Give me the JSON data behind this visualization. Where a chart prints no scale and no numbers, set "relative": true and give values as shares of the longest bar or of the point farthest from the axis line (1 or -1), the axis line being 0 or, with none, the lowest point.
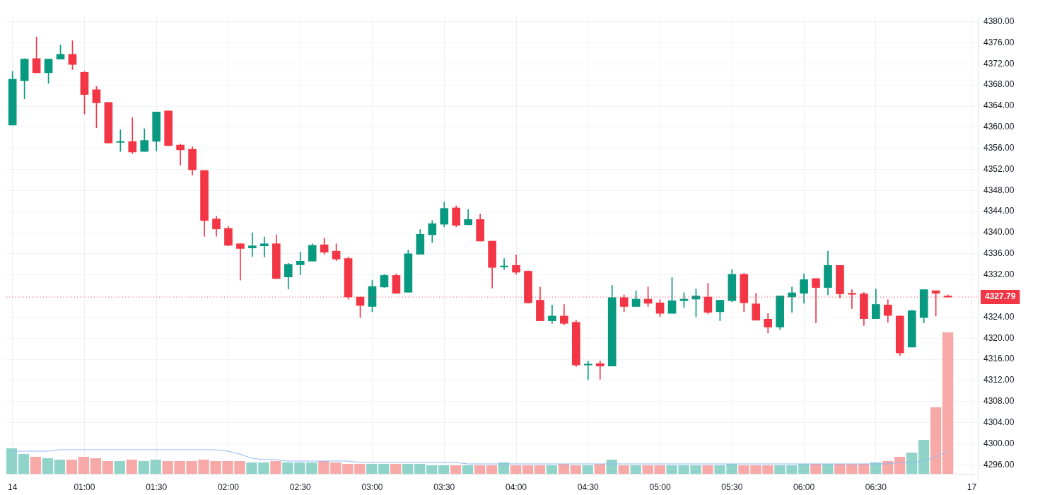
{
  "chart_data": [
    {
      "type": "candlestick",
      "categories": [
        "14",
        null,
        null,
        null,
        null,
        null,
        "01:00",
        null,
        null,
        null,
        null,
        null,
        "01:30",
        null,
        null,
        null,
        null,
        null,
        "02:00",
        null,
        null,
        null,
        null,
        null,
        "02:30",
        null,
        null,
        null,
        null,
        null,
        "03:00",
        null,
        null,
        null,
        null,
        null,
        "03:30",
        null,
        null,
        null,
        null,
        null,
        "04:00",
        null,
        null,
        null,
        null,
        null,
        "04:30",
        null,
        null,
        null,
        null,
        null,
        "05:00",
        null,
        null,
        null,
        null,
        null,
        "05:30",
        null,
        null,
        null,
        null,
        null,
        "06:00",
        null,
        null,
        null,
        null,
        null,
        "06:30",
        null,
        null,
        null,
        null,
        null,
        null,
        null,
        "17"
      ],
      "ohlc": [
        [
          4360.4,
          4370.6,
          4360.4,
          4369.1
        ],
        [
          4368.8,
          4373.0,
          4365.4,
          4372.9
        ],
        [
          4373.0,
          4377.1,
          4370.3,
          4370.3
        ],
        [
          4370.3,
          4372.9,
          4368.3,
          4372.9
        ],
        [
          4372.9,
          4375.6,
          4372.9,
          4373.8
        ],
        [
          4373.8,
          4376.4,
          4370.9,
          4371.9
        ],
        [
          4370.4,
          4370.6,
          4362.5,
          4366.2
        ],
        [
          4367.1,
          4367.7,
          4359.9,
          4364.6
        ],
        [
          4364.7,
          4364.7,
          4357.0,
          4357.0
        ],
        [
          4357.1,
          4359.5,
          4355.4,
          4357.3
        ],
        [
          4357.3,
          4361.8,
          4355.0,
          4355.3
        ],
        [
          4355.4,
          4359.7,
          4355.4,
          4357.5
        ],
        [
          4357.3,
          4362.9,
          4355.5,
          4362.9
        ],
        [
          4363.1,
          4363.1,
          4356.5,
          4356.5
        ],
        [
          4356.6,
          4356.8,
          4352.8,
          4355.7
        ],
        [
          4355.8,
          4356.3,
          4350.9,
          4351.9
        ],
        [
          4351.8,
          4351.8,
          4339.3,
          4342.3
        ],
        [
          4342.6,
          4343.1,
          4339.3,
          4340.7
        ],
        [
          4340.8,
          4341.2,
          4337.5,
          4337.6
        ],
        [
          4337.9,
          4337.9,
          4331.0,
          4337.0
        ],
        [
          4337.1,
          4340.0,
          4335.5,
          4337.5
        ],
        [
          4337.5,
          4339.2,
          4335.4,
          4337.9
        ],
        [
          4337.9,
          4339.6,
          4331.3,
          4331.3
        ],
        [
          4331.6,
          4334.2,
          4329.3,
          4334.0
        ],
        [
          4333.9,
          4336.3,
          4332.0,
          4334.6
        ],
        [
          4334.6,
          4337.9,
          4334.6,
          4337.6
        ],
        [
          4337.7,
          4339.0,
          4335.9,
          4336.3
        ],
        [
          4336.5,
          4337.9,
          4334.7,
          4335.0
        ],
        [
          4335.1,
          4335.4,
          4327.4,
          4327.8
        ],
        [
          4327.8,
          4327.8,
          4323.9,
          4326.2
        ],
        [
          4326.0,
          4331.0,
          4325.0,
          4329.8
        ],
        [
          4329.7,
          4332.1,
          4329.6,
          4331.9
        ],
        [
          4331.9,
          4332.2,
          4328.5,
          4328.5
        ],
        [
          4328.7,
          4336.7,
          4328.7,
          4336.0
        ],
        [
          4335.9,
          4340.6,
          4335.9,
          4339.7
        ],
        [
          4339.6,
          4342.3,
          4338.1,
          4341.7
        ],
        [
          4341.6,
          4345.8,
          4341.1,
          4344.6
        ],
        [
          4344.7,
          4345.1,
          4341.1,
          4341.4
        ],
        [
          4341.5,
          4344.4,
          4341.5,
          4342.5
        ],
        [
          4342.5,
          4343.5,
          4338.4,
          4338.4
        ],
        [
          4338.4,
          4338.4,
          4329.5,
          4333.4
        ],
        [
          4333.5,
          4335.1,
          4333.0,
          4333.7
        ],
        [
          4333.8,
          4335.8,
          4332.1,
          4332.5
        ],
        [
          4332.7,
          4332.8,
          4326.6,
          4326.7
        ],
        [
          4327.2,
          4329.7,
          4323.3,
          4323.3
        ],
        [
          4323.3,
          4326.3,
          4322.8,
          4324.2
        ],
        [
          4324.2,
          4326.4,
          4322.5,
          4322.8
        ],
        [
          4323.0,
          4323.4,
          4314.6,
          4314.9
        ],
        [
          4314.9,
          4315.7,
          4312.1,
          4315.1
        ],
        [
          4315.2,
          4315.7,
          4312.2,
          4314.7
        ],
        [
          4314.7,
          4330.0,
          4314.7,
          4327.7
        ],
        [
          4327.7,
          4328.2,
          4325.0,
          4326.0
        ],
        [
          4326.0,
          4329.0,
          4326.0,
          4327.4
        ],
        [
          4327.4,
          4329.7,
          4326.0,
          4326.6
        ],
        [
          4326.7,
          4327.3,
          4324.1,
          4324.7
        ],
        [
          4324.7,
          4331.5,
          4324.7,
          4327.1
        ],
        [
          4327.1,
          4328.6,
          4325.8,
          4327.4
        ],
        [
          4327.4,
          4329.3,
          4324.1,
          4328.0
        ],
        [
          4327.8,
          4330.4,
          4324.6,
          4324.9
        ],
        [
          4325.0,
          4327.2,
          4323.3,
          4327.2
        ],
        [
          4327.1,
          4333.0,
          4326.9,
          4332.1
        ],
        [
          4332.1,
          4332.3,
          4325.0,
          4326.7
        ],
        [
          4326.5,
          4328.5,
          4323.4,
          4323.4
        ],
        [
          4323.6,
          4324.7,
          4321.0,
          4322.1
        ],
        [
          4322.1,
          4328.0,
          4321.6,
          4328.0
        ],
        [
          4327.8,
          4329.7,
          4324.9,
          4328.6
        ],
        [
          4328.5,
          4332.2,
          4326.6,
          4331.1
        ],
        [
          4331.3,
          4331.3,
          4322.9,
          4329.6
        ],
        [
          4329.6,
          4336.5,
          4328.2,
          4333.8
        ],
        [
          4333.8,
          4333.8,
          4327.6,
          4328.4
        ],
        [
          4328.5,
          4329.2,
          4325.6,
          4328.3
        ],
        [
          4328.4,
          4328.7,
          4322.4,
          4323.7
        ],
        [
          4323.7,
          4329.3,
          4323.7,
          4326.4
        ],
        [
          4326.3,
          4327.3,
          4323.0,
          4324.3
        ],
        [
          4324.2,
          4324.2,
          4316.7,
          4317.2
        ],
        [
          4318.3,
          4325.3,
          4318.3,
          4325.2
        ],
        [
          4323.9,
          4329.2,
          4322.9,
          4329.2
        ],
        [
          4329.0,
          4329.0,
          4324.2,
          4328.5
        ],
        [
          4328.0,
          4328.2,
          4327.79,
          4327.79
        ],
        null,
        null
      ],
      "colors": [
        "#089981",
        "#089981",
        "#f23645",
        "#089981",
        "#089981",
        "#f23645",
        "#f23645",
        "#f23645",
        "#f23645",
        "#089981",
        "#f23645",
        "#089981",
        "#089981",
        "#f23645",
        "#f23645",
        "#f23645",
        "#f23645",
        "#f23645",
        "#f23645",
        "#f23645",
        "#089981",
        "#089981",
        "#f23645",
        "#089981",
        "#089981",
        "#089981",
        "#f23645",
        "#f23645",
        "#f23645",
        "#f23645",
        "#089981",
        "#089981",
        "#f23645",
        "#089981",
        "#089981",
        "#089981",
        "#089981",
        "#f23645",
        "#089981",
        "#f23645",
        "#f23645",
        "#089981",
        "#f23645",
        "#f23645",
        "#f23645",
        "#089981",
        "#f23645",
        "#f23645",
        "#089981",
        "#f23645",
        "#089981",
        "#f23645",
        "#089981",
        "#f23645",
        "#f23645",
        "#089981",
        "#089981",
        "#089981",
        "#f23645",
        "#089981",
        "#089981",
        "#f23645",
        "#f23645",
        "#f23645",
        "#089981",
        "#089981",
        "#089981",
        "#f23645",
        "#089981",
        "#f23645",
        "#f23645",
        "#f23645",
        "#089981",
        "#f23645",
        "#f23645",
        "#089981",
        "#089981",
        "#f23645",
        "#f23645",
        null,
        null
      ],
      "ylim": [
        4293,
        4381
      ],
      "yticks": [
        {
          "value": 4296,
          "label": "4296.00"
        },
        {
          "value": 4300,
          "label": "4300.00"
        },
        {
          "value": 4304,
          "label": "4304.00"
        },
        {
          "value": 4308,
          "label": "4308.00"
        },
        {
          "value": 4312,
          "label": "4312.00"
        },
        {
          "value": 4316,
          "label": "4316.00"
        },
        {
          "value": 4320,
          "label": "4320.00"
        },
        {
          "value": 4324,
          "label": "4324.00"
        },
        {
          "value": 4332,
          "label": "4332.00"
        },
        {
          "value": 4336,
          "label": "4336.00"
        },
        {
          "value": 4340,
          "label": "4340.00"
        },
        {
          "value": 4344,
          "label": "4344.00"
        },
        {
          "value": 4348,
          "label": "4348.00"
        },
        {
          "value": 4352,
          "label": "4352.00"
        },
        {
          "value": 4356,
          "label": "4356.00"
        },
        {
          "value": 4360,
          "label": "4360.00"
        },
        {
          "value": 4364,
          "label": "4364.00"
        },
        {
          "value": 4368,
          "label": "4368.00"
        },
        {
          "value": 4372,
          "label": "4372.00"
        },
        {
          "value": 4376,
          "label": "4376.00"
        },
        {
          "value": 4380,
          "label": "4380.00"
        }
      ],
      "ref_lines": [
        {
          "axis": "y",
          "value": 4327.79,
          "label": "4327.79",
          "color": "#f23645",
          "line_style": "dotted"
        }
      ],
      "grid": true
    },
    {
      "type": "bar",
      "relative": true,
      "categories": [
        null,
        null,
        null,
        null,
        null,
        null,
        null,
        null,
        null,
        null,
        null,
        null,
        null,
        null,
        null,
        null,
        null,
        null,
        null,
        null,
        null,
        null,
        null,
        null,
        null,
        null,
        null,
        null,
        null,
        null,
        null,
        null,
        null,
        null,
        null,
        null,
        null,
        null,
        null,
        null,
        null,
        null,
        null,
        null,
        null,
        null,
        null,
        null,
        null,
        null,
        null,
        null,
        null,
        null,
        null,
        null,
        null,
        null,
        null,
        null,
        null,
        null,
        null,
        null,
        null,
        null,
        null,
        null,
        null,
        null,
        null,
        null,
        null,
        null,
        null,
        null,
        null,
        null,
        null,
        null,
        null
      ],
      "series": [
        {
          "type": "bar",
          "values": [
            0.18,
            0.14,
            0.12,
            0.11,
            0.1,
            0.1,
            0.12,
            0.11,
            0.09,
            0.09,
            0.1,
            0.09,
            0.1,
            0.09,
            0.09,
            0.09,
            0.1,
            0.09,
            0.09,
            0.09,
            0.08,
            0.08,
            0.09,
            0.08,
            0.08,
            0.08,
            0.09,
            0.08,
            0.07,
            0.07,
            0.07,
            0.07,
            0.07,
            0.07,
            0.07,
            0.06,
            0.06,
            0.06,
            0.06,
            0.06,
            0.06,
            0.08,
            0.06,
            0.06,
            0.06,
            0.06,
            0.07,
            0.06,
            0.06,
            0.07,
            0.1,
            0.06,
            0.06,
            0.06,
            0.06,
            0.06,
            0.06,
            0.06,
            0.06,
            0.06,
            0.07,
            0.06,
            0.06,
            0.06,
            0.06,
            0.06,
            0.07,
            0.07,
            0.07,
            0.07,
            0.07,
            0.07,
            0.08,
            0.09,
            0.12,
            0.15,
            0.24,
            0.47,
            1,
            null,
            null
          ],
          "colors": [
            "#8fd3c9",
            "#8fd3c9",
            "#f7a9a7",
            "#8fd3c9",
            "#8fd3c9",
            "#f7a9a7",
            "#f7a9a7",
            "#f7a9a7",
            "#f7a9a7",
            "#8fd3c9",
            "#f7a9a7",
            "#8fd3c9",
            "#8fd3c9",
            "#f7a9a7",
            "#f7a9a7",
            "#f7a9a7",
            "#f7a9a7",
            "#f7a9a7",
            "#f7a9a7",
            "#f7a9a7",
            "#8fd3c9",
            "#8fd3c9",
            "#f7a9a7",
            "#8fd3c9",
            "#8fd3c9",
            "#8fd3c9",
            "#f7a9a7",
            "#f7a9a7",
            "#f7a9a7",
            "#f7a9a7",
            "#8fd3c9",
            "#8fd3c9",
            "#f7a9a7",
            "#8fd3c9",
            "#8fd3c9",
            "#8fd3c9",
            "#8fd3c9",
            "#f7a9a7",
            "#8fd3c9",
            "#f7a9a7",
            "#f7a9a7",
            "#8fd3c9",
            "#f7a9a7",
            "#f7a9a7",
            "#f7a9a7",
            "#8fd3c9",
            "#f7a9a7",
            "#f7a9a7",
            "#8fd3c9",
            "#f7a9a7",
            "#8fd3c9",
            "#f7a9a7",
            "#8fd3c9",
            "#f7a9a7",
            "#f7a9a7",
            "#8fd3c9",
            "#8fd3c9",
            "#8fd3c9",
            "#f7a9a7",
            "#8fd3c9",
            "#8fd3c9",
            "#f7a9a7",
            "#f7a9a7",
            "#f7a9a7",
            "#8fd3c9",
            "#8fd3c9",
            "#8fd3c9",
            "#f7a9a7",
            "#8fd3c9",
            "#f7a9a7",
            "#f7a9a7",
            "#f7a9a7",
            "#8fd3c9",
            "#f7a9a7",
            "#f7a9a7",
            "#8fd3c9",
            "#8fd3c9",
            "#f7a9a7",
            "#f7a9a7",
            null,
            null
          ]
        },
        {
          "type": "line",
          "color": "#90b8f5",
          "values": [
            0.16,
            0.16,
            0.16,
            0.16,
            0.17,
            0.17,
            0.17,
            0.17,
            0.17,
            0.17,
            0.17,
            0.17,
            0.17,
            0.17,
            0.17,
            0.17,
            0.17,
            0.17,
            0.16,
            0.14,
            0.11,
            0.1,
            0.1,
            0.09,
            0.09,
            0.09,
            0.09,
            0.09,
            0.09,
            0.08,
            0.08,
            0.08,
            0.08,
            0.08,
            0.08,
            0.08,
            0.08,
            0.08,
            0.07,
            0.07,
            0.07,
            0.07,
            0.07,
            0.07,
            0.07,
            0.07,
            0.07,
            0.07,
            0.07,
            0.07,
            0.07,
            0.07,
            0.07,
            0.07,
            0.07,
            0.07,
            0.07,
            0.07,
            0.07,
            0.07,
            0.07,
            0.07,
            0.07,
            0.07,
            0.07,
            0.07,
            0.07,
            0.07,
            0.07,
            0.07,
            0.07,
            0.07,
            0.07,
            0.07,
            0.08,
            0.08,
            0.09,
            0.12,
            0.16,
            null,
            null
          ]
        }
      ],
      "tick_labels": false
    }
  ]
}
